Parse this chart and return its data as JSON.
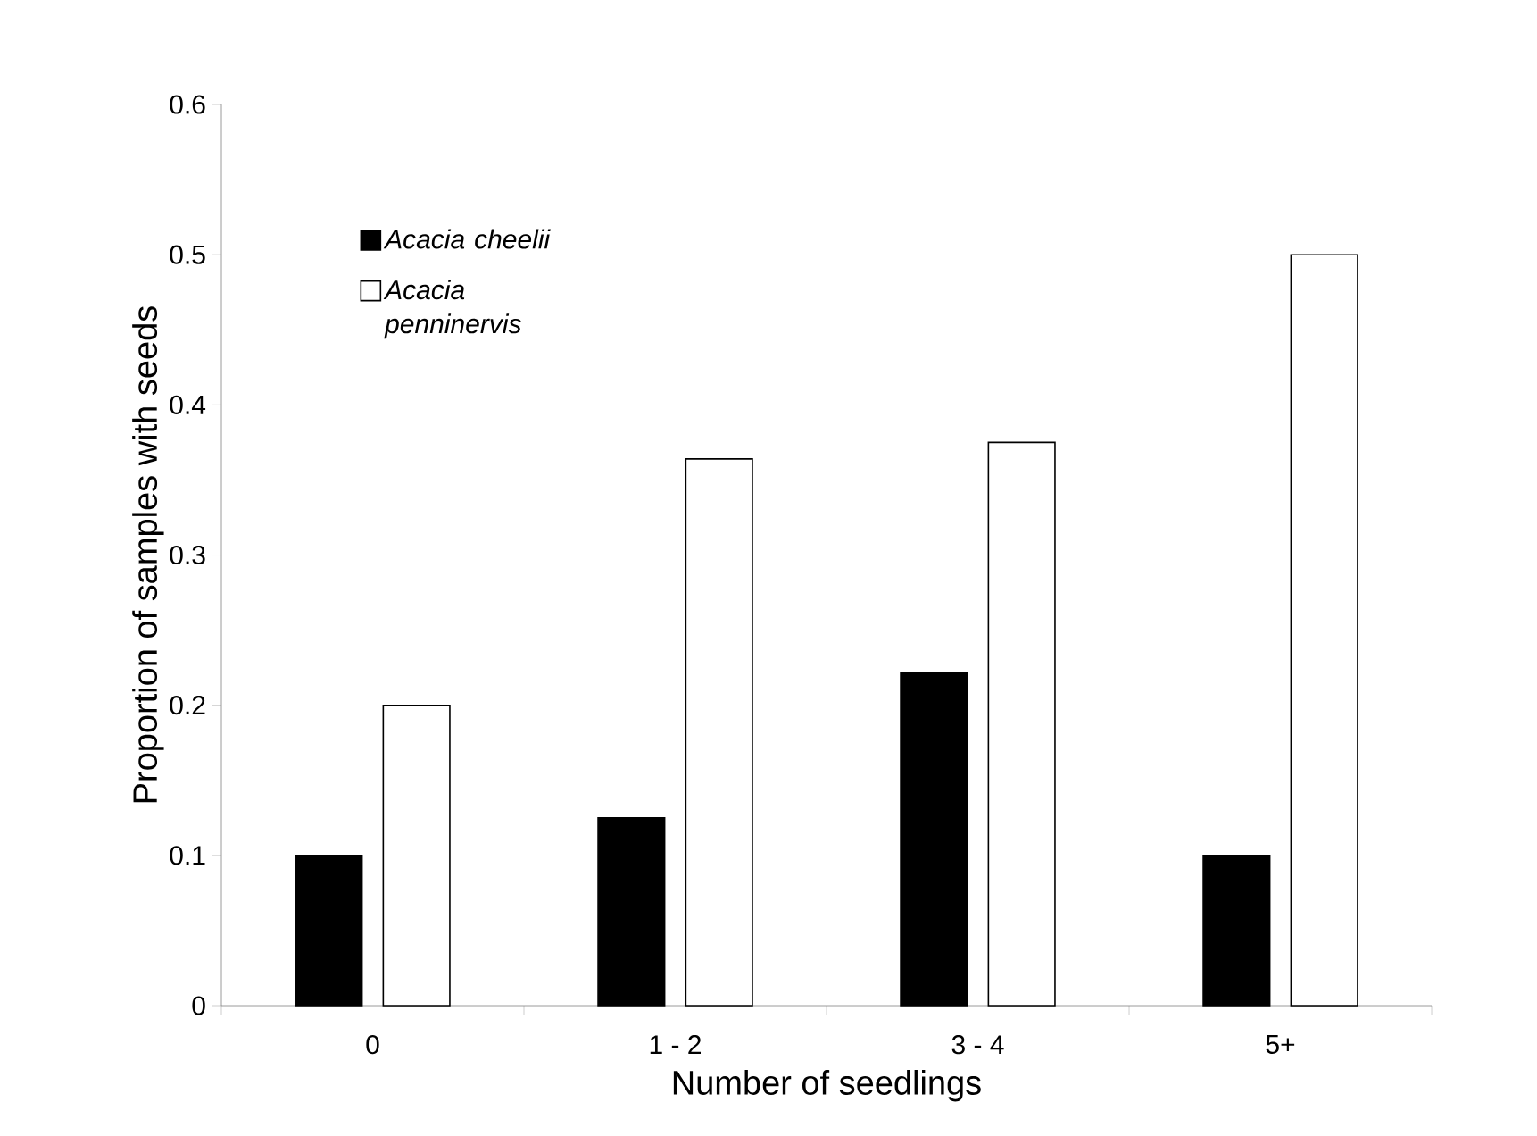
{
  "chart_data": {
    "type": "bar",
    "xlabel": "Number of seedlings",
    "ylabel": "Proportion of samples with seeds",
    "categories": [
      "0",
      "1 - 2",
      "3 - 4",
      "5+"
    ],
    "series": [
      {
        "name": "Acacia cheelii",
        "color": "#000000",
        "values": [
          0.1,
          0.125,
          0.222,
          0.1
        ]
      },
      {
        "name": "Acacia penninervis",
        "color": "#ffffff",
        "values": [
          0.2,
          0.364,
          0.375,
          0.5
        ]
      }
    ],
    "ylim": [
      0,
      0.6
    ],
    "yticks": [
      0,
      0.1,
      0.2,
      0.3,
      0.4,
      0.5,
      0.6
    ],
    "grid": false,
    "legend": "top left"
  }
}
